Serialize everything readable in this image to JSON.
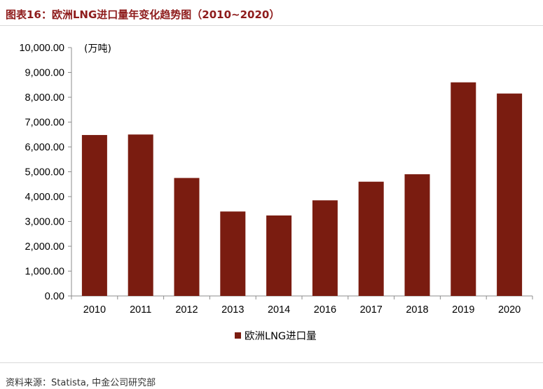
{
  "header": {
    "title": "图表16：欧洲LNG进口量年变化趋势图（2010~2020）"
  },
  "footer": {
    "source": "资料来源：Statista, 中金公司研究部"
  },
  "colors": {
    "title": "#8e1b1b",
    "bar": "#7a1c10"
  },
  "chart_data": {
    "type": "bar",
    "title": "",
    "unit_label": "(万吨)",
    "categories": [
      "2010",
      "2011",
      "2012",
      "2013",
      "2014",
      "2016",
      "2017",
      "2018",
      "2019",
      "2020"
    ],
    "series": [
      {
        "name": "欧洲LNG进口量",
        "values": [
          6480,
          6500,
          4750,
          3400,
          3240,
          3850,
          4600,
          4900,
          8600,
          8150
        ]
      }
    ],
    "ylim": [
      0,
      10000
    ],
    "yticks": [
      "0.00",
      "1,000.00",
      "2,000.00",
      "3,000.00",
      "4,000.00",
      "5,000.00",
      "6,000.00",
      "7,000.00",
      "8,000.00",
      "9,000.00",
      "10,000.00"
    ],
    "grid": false,
    "legend": "bottom-center"
  }
}
